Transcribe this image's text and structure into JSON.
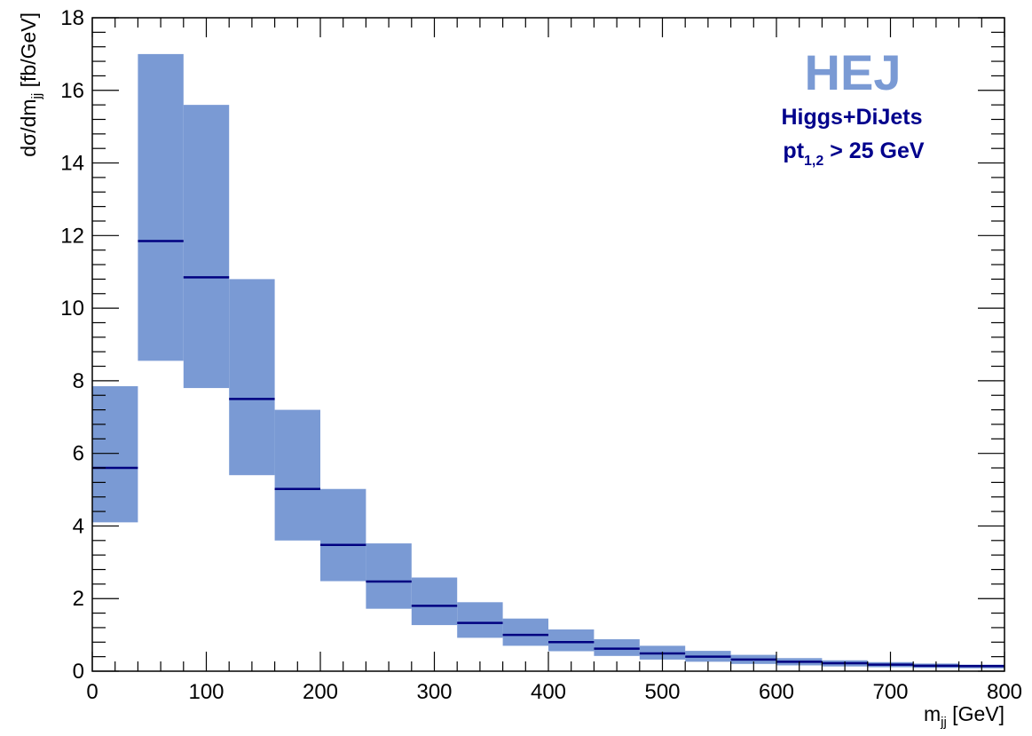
{
  "chart_data": {
    "type": "histogram-band",
    "bin_edges": [
      0,
      40,
      80,
      120,
      160,
      200,
      240,
      280,
      320,
      360,
      400,
      440,
      480,
      520,
      560,
      600,
      640,
      680,
      720,
      760,
      800
    ],
    "central": [
      5.6,
      11.85,
      10.85,
      7.5,
      5.02,
      3.48,
      2.47,
      1.8,
      1.33,
      1.0,
      0.8,
      0.62,
      0.49,
      0.4,
      0.32,
      0.26,
      0.22,
      0.18,
      0.15,
      0.14
    ],
    "band_low": [
      4.1,
      8.55,
      7.8,
      5.4,
      3.6,
      2.48,
      1.72,
      1.27,
      0.92,
      0.7,
      0.55,
      0.42,
      0.32,
      0.26,
      0.2,
      0.16,
      0.13,
      0.11,
      0.09,
      0.08
    ],
    "band_high": [
      7.85,
      17.0,
      15.6,
      10.8,
      7.2,
      5.02,
      3.52,
      2.58,
      1.9,
      1.45,
      1.15,
      0.88,
      0.7,
      0.56,
      0.45,
      0.36,
      0.3,
      0.25,
      0.21,
      0.18
    ],
    "xlim": [
      0,
      800
    ],
    "ylim": [
      0,
      18
    ],
    "x_ticks": [
      "0",
      "100",
      "200",
      "300",
      "400",
      "500",
      "600",
      "700",
      "800"
    ],
    "x_tick_values": [
      0,
      100,
      200,
      300,
      400,
      500,
      600,
      700,
      800
    ],
    "y_ticks": [
      "0",
      "2",
      "4",
      "6",
      "8",
      "10",
      "12",
      "14",
      "16",
      "18"
    ],
    "y_tick_values": [
      0,
      2,
      4,
      6,
      8,
      10,
      12,
      14,
      16,
      18
    ],
    "xlabel": {
      "main": "m",
      "sub": "jj",
      "rest": " [GeV]"
    },
    "ylabel": {
      "main": "dσ/dm",
      "sub": "jj",
      "rest": " [fb/GeV]"
    },
    "annotations": {
      "logo": "HEJ",
      "line1": "Higgs+DiJets",
      "line2_main": "pt",
      "line2_sub": "1,2",
      "line2_rest": " > 25 GeV"
    },
    "colors": {
      "band": "#7a9ad4",
      "central_line": "#000080",
      "annotation": "#00008c",
      "logo": "#7a9ad4"
    }
  }
}
